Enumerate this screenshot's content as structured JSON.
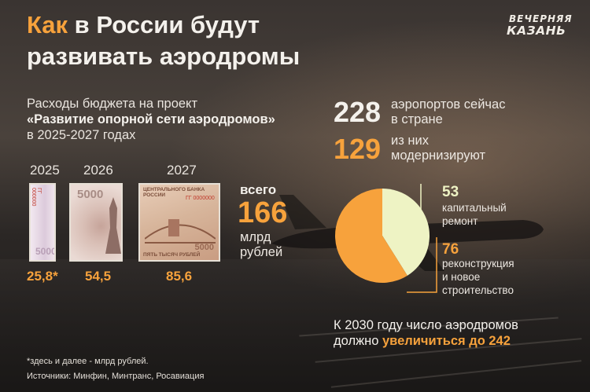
{
  "header": {
    "title_accent": "Как",
    "title_rest_line1": " в России будут",
    "title_line2": "развивать аэродромы",
    "logo_line1": "ВЕЧЕРНЯЯ",
    "logo_line2": "КАЗАНЬ"
  },
  "budget": {
    "line1": "Расходы бюджета на проект",
    "line2": "«Развитие опорной сети аэродромов»",
    "line3": "в 2025-2027 годах",
    "total_label_top": "всего",
    "total_value": "166",
    "total_unit_1": "млрд",
    "total_unit_2": "рублей"
  },
  "bills": {
    "b1_denom": "5000",
    "b1_serial": "ГГ 000000",
    "b2_denom": "5000",
    "b3_bank": "ЦЕНТРАЛЬНОГО БАНКА РОССИИ",
    "b3_serial": "ГГ 0000000",
    "b3_word": "ПЯТЬ ТЫСЯЧ РУБЛЕЙ",
    "b3_denom": "5000"
  },
  "chart_data": [
    {
      "type": "bar",
      "categories": [
        "2025",
        "2026",
        "2027"
      ],
      "values": [
        25.8,
        54.5,
        85.6
      ],
      "value_labels": [
        "25,8*",
        "54,5",
        "85,6"
      ]
    },
    {
      "type": "pie",
      "categories": [
        "капитальный ремонт",
        "реконструкция и новое строительство"
      ],
      "values": [
        53,
        76
      ],
      "colors": [
        "#eef3c4",
        "#f7a23c"
      ],
      "value_labels": [
        "53",
        "76"
      ]
    }
  ],
  "airports": {
    "now_value": "228",
    "now_label_1": "аэропортов сейчас",
    "now_label_2": "в стране",
    "mod_value": "129",
    "mod_label_1": "из них",
    "mod_label_2": "модернизируют"
  },
  "pie_labels": {
    "repair_1": "капитальный",
    "repair_2": "ремонт",
    "build_1": "реконструкция",
    "build_2": "и новое",
    "build_3": "строительство"
  },
  "forecast": {
    "line1": "К 2030 году число аэродромов",
    "line2_a": "должно ",
    "line2_b": "увеличиться до 242"
  },
  "footer": {
    "note": "*здесь и далее - млрд рублей.",
    "sources": "Источники: Минфин, Минтранс, Росавиация"
  },
  "colors": {
    "accent": "#f7a23c",
    "pie_light": "#eef3c4",
    "text": "#f4f1ec"
  }
}
